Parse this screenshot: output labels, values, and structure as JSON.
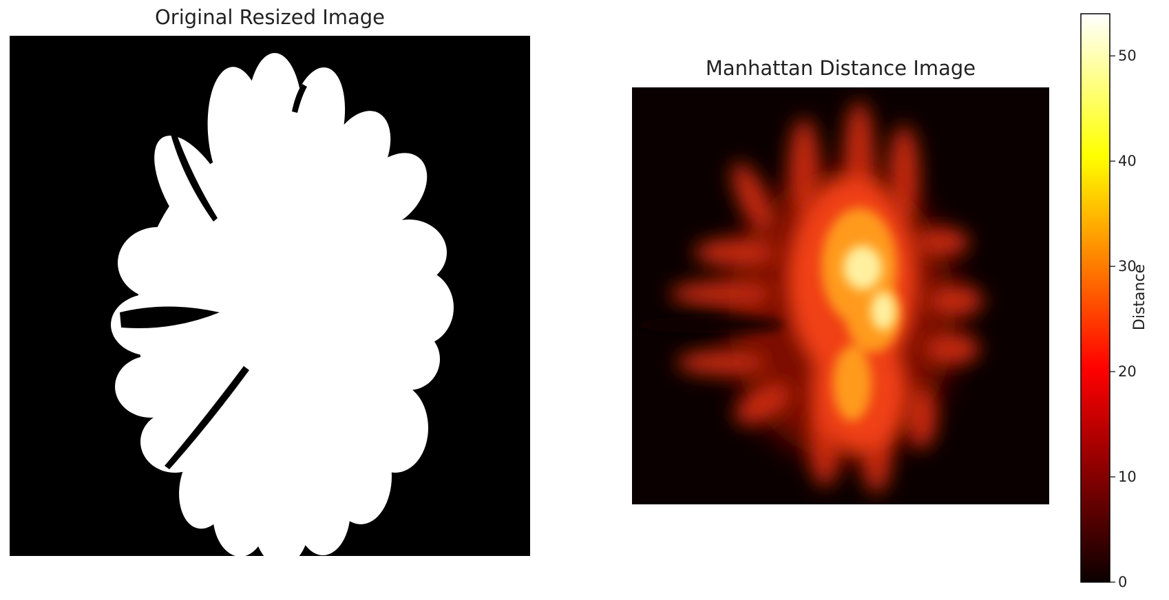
{
  "chart_data": [
    {
      "type": "image",
      "title": "Original Resized Image",
      "colormap": "gray",
      "axes": "off",
      "description_values": {
        "background": 0,
        "foreground": 1
      }
    },
    {
      "type": "heatmap",
      "title": "Manhattan Distance Image",
      "colormap": "hot",
      "axes": "off",
      "value_range": [
        0,
        54
      ],
      "peak_value": 54,
      "colorbar": {
        "label": "Distance",
        "ticks": [
          0,
          10,
          20,
          30,
          40,
          50
        ],
        "range": [
          0,
          54
        ],
        "placement": "right"
      }
    }
  ]
}
